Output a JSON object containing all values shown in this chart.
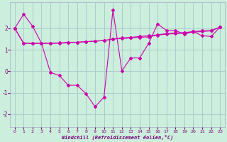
{
  "xlabel": "Windchill (Refroidissement éolien,°C)",
  "background_color": "#cceedd",
  "grid_color": "#aacccc",
  "line_color": "#cc00aa",
  "xlim": [
    -0.5,
    23.5
  ],
  "ylim": [
    -2.6,
    3.2
  ],
  "yticks": [
    -2,
    -1,
    0,
    1,
    2
  ],
  "xticks": [
    0,
    1,
    2,
    3,
    4,
    5,
    6,
    7,
    8,
    9,
    10,
    11,
    12,
    13,
    14,
    15,
    16,
    17,
    18,
    19,
    20,
    21,
    22,
    23
  ],
  "series": [
    [
      2.0,
      2.65,
      2.1,
      1.3,
      1.3,
      1.3,
      1.33,
      1.35,
      1.38,
      1.4,
      1.43,
      1.5,
      1.55,
      1.58,
      1.62,
      1.65,
      1.7,
      1.75,
      1.78,
      1.8,
      1.85,
      1.88,
      1.9,
      2.05
    ],
    [
      2.0,
      1.3,
      1.3,
      1.3,
      -0.05,
      -0.2,
      -0.65,
      -0.65,
      -1.05,
      -1.65,
      -1.2,
      2.85,
      0.02,
      0.62,
      0.62,
      1.3,
      2.2,
      1.9,
      1.9,
      1.72,
      1.85,
      1.65,
      1.62,
      2.05
    ],
    [
      2.0,
      1.3,
      1.3,
      1.3,
      1.3,
      1.32,
      1.35,
      1.35,
      1.38,
      1.4,
      1.43,
      1.5,
      1.52,
      1.55,
      1.58,
      1.6,
      1.68,
      1.73,
      1.75,
      1.78,
      1.82,
      1.85,
      1.88,
      2.05
    ]
  ]
}
